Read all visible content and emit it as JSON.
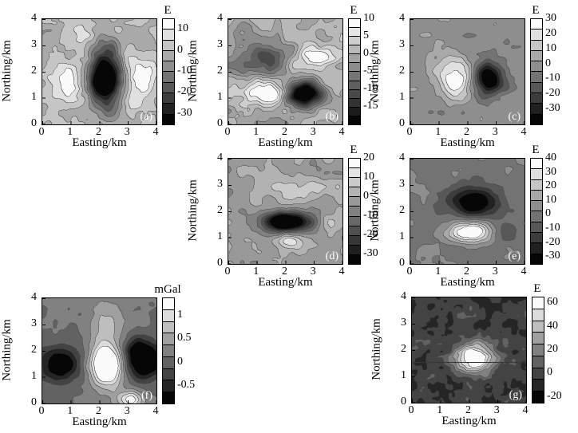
{
  "figure": {
    "background": "#ffffff"
  },
  "palette": {
    "min_color": "#060606",
    "max_color": "#fbfbfb",
    "contour_line": "#4a4a4a",
    "frame": "#000000",
    "panel_label_color": "#ffffff"
  },
  "chart_data": {
    "type": "heatmap",
    "subtype": "filled-contour-grid",
    "shared": {
      "xlabel": "Easting/km",
      "ylabel": "Northing/km",
      "xticks": [
        0,
        1,
        2,
        3,
        4
      ],
      "yticks": [
        0,
        1,
        2,
        3,
        4
      ],
      "xlim": [
        0,
        4
      ],
      "ylim": [
        0,
        4
      ],
      "grid": "off",
      "legend": "colorbar-right"
    },
    "panels": [
      {
        "id": "a",
        "panel_label": "(a)",
        "unit": "E",
        "colorbar": {
          "ticks": [
            10,
            0,
            -10,
            -20,
            -30
          ],
          "vmax": 15,
          "vmin": -35,
          "levels": 10
        },
        "field": {
          "base": 0,
          "noise": {
            "seed": 11,
            "amp": 6.5,
            "scale": 0.5
          },
          "features": [
            {
              "easting_km": 2.2,
              "northing_km": 1.75,
              "value": -46,
              "sigma_e": 0.42,
              "sigma_n": 0.6
            },
            {
              "easting_km": 2.15,
              "northing_km": 1.55,
              "value": -12,
              "sigma_e": 0.25,
              "sigma_n": 0.25
            },
            {
              "easting_km": 2.15,
              "northing_km": 2.9,
              "value": -10,
              "sigma_e": 0.35,
              "sigma_n": 0.5
            },
            {
              "easting_km": 2.2,
              "northing_km": 0.7,
              "value": -8,
              "sigma_e": 0.4,
              "sigma_n": 0.45
            },
            {
              "easting_km": 0.75,
              "northing_km": 1.7,
              "value": 13,
              "sigma_e": 0.45,
              "sigma_n": 0.5
            },
            {
              "easting_km": 3.55,
              "northing_km": 1.85,
              "value": 13,
              "sigma_e": 0.45,
              "sigma_n": 0.55
            },
            {
              "easting_km": 3.2,
              "northing_km": 0.8,
              "value": 8,
              "sigma_e": 0.3,
              "sigma_n": 0.3
            },
            {
              "easting_km": 1.3,
              "northing_km": 3.4,
              "value": 6,
              "sigma_e": 0.4,
              "sigma_n": 0.3
            }
          ]
        }
      },
      {
        "id": "b",
        "panel_label": "(b)",
        "unit": "E",
        "colorbar": {
          "ticks": [
            10,
            5,
            0,
            -5,
            -10,
            -15
          ],
          "vmax": 10,
          "vmin": -20,
          "levels": 12
        },
        "field": {
          "base": -1,
          "noise": {
            "seed": 22,
            "amp": 4.5,
            "scale": 0.55
          },
          "features": [
            {
              "easting_km": 2.65,
              "northing_km": 1.15,
              "value": -24,
              "sigma_e": 0.42,
              "sigma_n": 0.33
            },
            {
              "easting_km": 1.3,
              "northing_km": 1.2,
              "value": 13,
              "sigma_e": 0.55,
              "sigma_n": 0.38
            },
            {
              "easting_km": 1.35,
              "northing_km": 2.4,
              "value": -12,
              "sigma_e": 0.55,
              "sigma_n": 0.42
            },
            {
              "easting_km": 3.05,
              "northing_km": 2.45,
              "value": 10,
              "sigma_e": 0.6,
              "sigma_n": 0.4
            },
            {
              "easting_km": 3.9,
              "northing_km": 1.6,
              "value": 5,
              "sigma_e": 0.3,
              "sigma_n": 0.3
            }
          ]
        }
      },
      {
        "id": "c",
        "panel_label": "(c)",
        "unit": "E",
        "colorbar": {
          "ticks": [
            30,
            20,
            10,
            0,
            -10,
            -20,
            -30
          ],
          "vmax": 30,
          "vmin": -40,
          "levels": 10
        },
        "field": {
          "base": -2,
          "noise": {
            "seed": 33,
            "amp": 7,
            "scale": 0.5
          },
          "features": [
            {
              "easting_km": 1.6,
              "northing_km": 1.8,
              "value": 32,
              "sigma_e": 0.5,
              "sigma_n": 0.55
            },
            {
              "easting_km": 2.7,
              "northing_km": 1.75,
              "value": -45,
              "sigma_e": 0.4,
              "sigma_n": 0.45
            }
          ]
        }
      },
      {
        "id": "d",
        "panel_label": "(d)",
        "unit": "E",
        "colorbar": {
          "ticks": [
            20,
            10,
            0,
            -10,
            -20,
            -30
          ],
          "vmax": 20,
          "vmin": -35,
          "levels": 11
        },
        "field": {
          "base": -2,
          "noise": {
            "seed": 44,
            "amp": 5.5,
            "scale": 0.5
          },
          "features": [
            {
              "easting_km": 2.1,
              "northing_km": 1.6,
              "value": -44,
              "sigma_e": 0.6,
              "sigma_n": 0.28
            },
            {
              "easting_km": 1.75,
              "northing_km": 1.62,
              "value": -10,
              "sigma_e": 0.25,
              "sigma_n": 0.18
            },
            {
              "easting_km": 2.2,
              "northing_km": 0.9,
              "value": 16,
              "sigma_e": 0.45,
              "sigma_n": 0.22
            },
            {
              "easting_km": 2.6,
              "northing_km": 2.9,
              "value": 12,
              "sigma_e": 0.8,
              "sigma_n": 0.3
            },
            {
              "easting_km": 3.5,
              "northing_km": 1.6,
              "value": 9,
              "sigma_e": 0.28,
              "sigma_n": 0.22
            }
          ]
        }
      },
      {
        "id": "e",
        "panel_label": "(e)",
        "unit": "E",
        "colorbar": {
          "ticks": [
            40,
            30,
            20,
            10,
            0,
            -10,
            -20,
            -30
          ],
          "vmax": 40,
          "vmin": -35,
          "levels": 10
        },
        "field": {
          "base": 1,
          "noise": {
            "seed": 55,
            "amp": 5.5,
            "scale": 0.5
          },
          "features": [
            {
              "easting_km": 2.2,
              "northing_km": 2.35,
              "value": -40,
              "sigma_e": 0.6,
              "sigma_n": 0.42
            },
            {
              "easting_km": 2.1,
              "northing_km": 1.25,
              "value": 48,
              "sigma_e": 0.5,
              "sigma_n": 0.28
            },
            {
              "easting_km": 3.3,
              "northing_km": 1.2,
              "value": -12,
              "sigma_e": 0.35,
              "sigma_n": 0.3
            }
          ]
        }
      },
      {
        "id": "f",
        "panel_label": "(f)",
        "unit": "mGal",
        "colorbar": {
          "ticks": [
            1,
            0.5,
            0,
            -0.5
          ],
          "vmax": 1.375,
          "vmin": -0.875,
          "levels": 9
        },
        "field": {
          "base": 0.15,
          "noise": {
            "seed": 66,
            "amp": 0.14,
            "scale": 0.5
          },
          "features": [
            {
              "easting_km": 2.25,
              "northing_km": 1.45,
              "value": 1.9,
              "sigma_e": 0.4,
              "sigma_n": 0.55
            },
            {
              "easting_km": 0.6,
              "northing_km": 1.5,
              "value": -1.2,
              "sigma_e": 0.5,
              "sigma_n": 0.45
            },
            {
              "easting_km": 3.6,
              "northing_km": 1.55,
              "value": -1.25,
              "sigma_e": 0.5,
              "sigma_n": 0.45
            },
            {
              "easting_km": 3.35,
              "northing_km": 2.2,
              "value": -0.6,
              "sigma_e": 0.4,
              "sigma_n": 0.35
            },
            {
              "easting_km": 3.1,
              "northing_km": 0.15,
              "value": 1.2,
              "sigma_e": 0.3,
              "sigma_n": 0.25
            },
            {
              "easting_km": 2.3,
              "northing_km": 3.0,
              "value": 0.55,
              "sigma_e": 0.45,
              "sigma_n": 0.6
            }
          ]
        }
      },
      {
        "id": "g",
        "panel_label": "(g)",
        "unit": "E",
        "colorbar": {
          "ticks": [
            60,
            40,
            20,
            0,
            -20
          ],
          "vmax": 65,
          "vmin": -25,
          "levels": 9
        },
        "profile_line_northing": 1.55,
        "field": {
          "base": -2,
          "noise": {
            "seed": 77,
            "amp": 13,
            "scale": 0.33
          },
          "features": [
            {
              "easting_km": 2.2,
              "northing_km": 1.7,
              "value": 80,
              "sigma_e": 0.48,
              "sigma_n": 0.38
            }
          ]
        }
      }
    ]
  }
}
